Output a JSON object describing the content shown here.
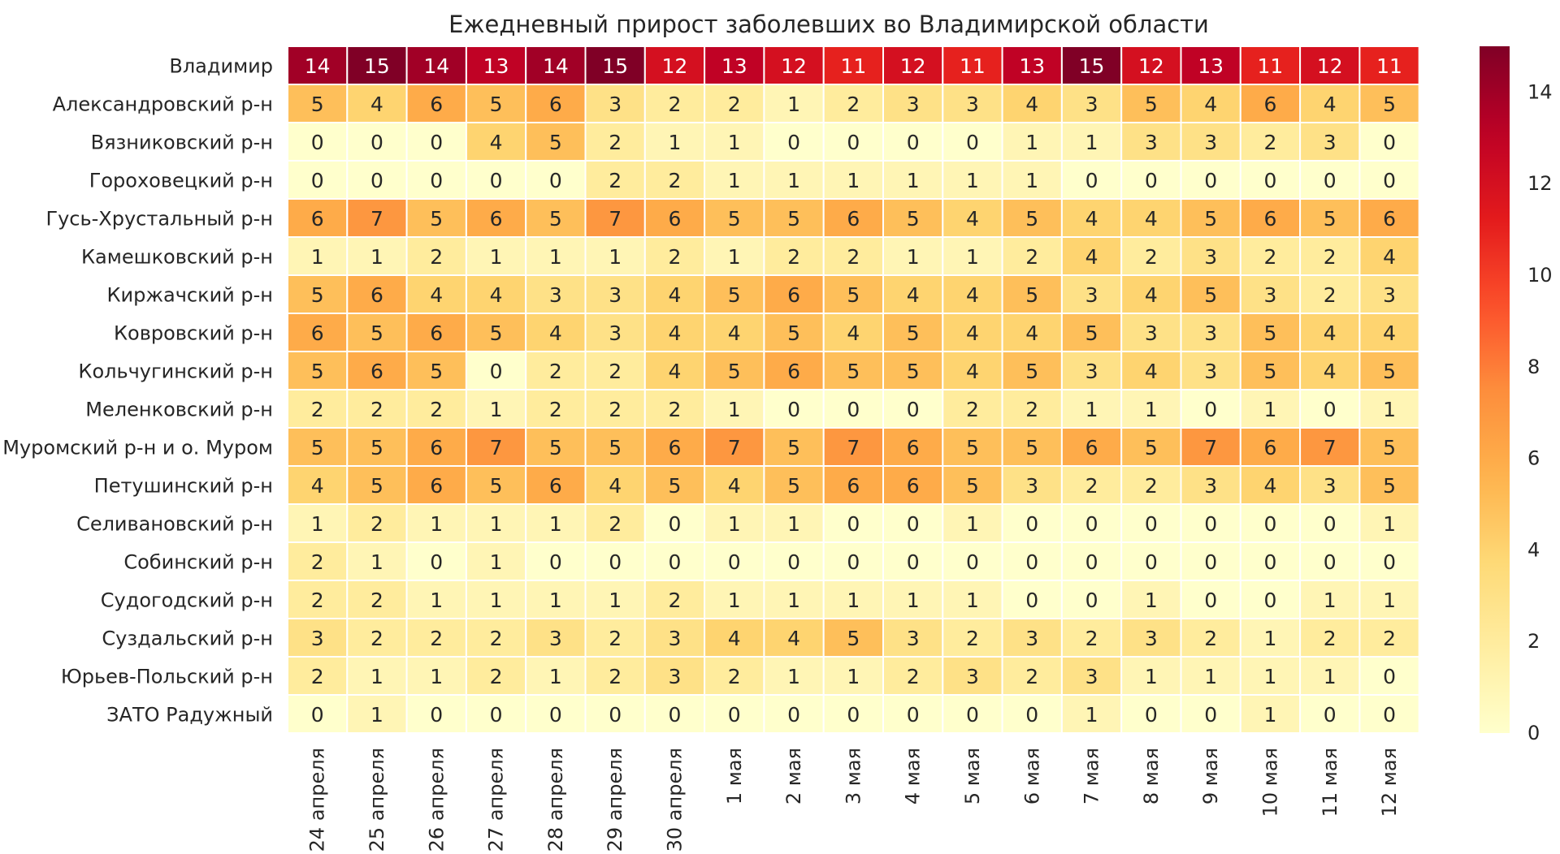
{
  "chart_data": {
    "type": "heatmap",
    "title": "Ежедневный прирост заболевших во Владимирской области",
    "rows": [
      "Владимир",
      "Александровский р-н",
      "Вязниковский р-н",
      "Гороховецкий р-н",
      "Гусь-Хрустальный р-н",
      "Камешковский р-н",
      "Киржачский р-н",
      "Ковровский р-н",
      "Кольчугинский р-н",
      "Меленковский р-н",
      "Муромский р-н и о. Муром",
      "Петушинский р-н",
      "Селивановский р-н",
      "Собинский р-н",
      "Судогодский р-н",
      "Суздальский р-н",
      "Юрьев-Польский р-н",
      "ЗАТО Радужный"
    ],
    "columns": [
      "24 апреля",
      "25 апреля",
      "26 апреля",
      "27 апреля",
      "28 апреля",
      "29 апреля",
      "30 апреля",
      "1 мая",
      "2 мая",
      "3 мая",
      "4 мая",
      "5 мая",
      "6 мая",
      "7 мая",
      "8 мая",
      "9 мая",
      "10 мая",
      "11 мая",
      "12 мая"
    ],
    "values": [
      [
        14,
        15,
        14,
        13,
        14,
        15,
        12,
        13,
        12,
        11,
        12,
        11,
        13,
        15,
        12,
        13,
        11,
        12,
        11
      ],
      [
        5,
        4,
        6,
        5,
        6,
        3,
        2,
        2,
        1,
        2,
        3,
        3,
        4,
        3,
        5,
        4,
        6,
        4,
        5
      ],
      [
        0,
        0,
        0,
        4,
        5,
        2,
        1,
        1,
        0,
        0,
        0,
        0,
        1,
        1,
        3,
        3,
        2,
        3,
        0
      ],
      [
        0,
        0,
        0,
        0,
        0,
        2,
        2,
        1,
        1,
        1,
        1,
        1,
        1,
        0,
        0,
        0,
        0,
        0,
        0
      ],
      [
        6,
        7,
        5,
        6,
        5,
        7,
        6,
        5,
        5,
        6,
        5,
        4,
        5,
        4,
        4,
        5,
        6,
        5,
        6
      ],
      [
        1,
        1,
        2,
        1,
        1,
        1,
        2,
        1,
        2,
        2,
        1,
        1,
        2,
        4,
        2,
        3,
        2,
        2,
        4
      ],
      [
        5,
        6,
        4,
        4,
        3,
        3,
        4,
        5,
        6,
        5,
        4,
        4,
        5,
        3,
        4,
        5,
        3,
        2,
        3
      ],
      [
        6,
        5,
        6,
        5,
        4,
        3,
        4,
        4,
        5,
        4,
        5,
        4,
        4,
        5,
        3,
        3,
        5,
        4,
        4
      ],
      [
        5,
        6,
        5,
        0,
        2,
        2,
        4,
        5,
        6,
        5,
        5,
        4,
        5,
        3,
        4,
        3,
        5,
        4,
        5
      ],
      [
        2,
        2,
        2,
        1,
        2,
        2,
        2,
        1,
        0,
        0,
        0,
        2,
        2,
        1,
        1,
        0,
        1,
        0,
        1
      ],
      [
        5,
        5,
        6,
        7,
        5,
        5,
        6,
        7,
        5,
        7,
        6,
        5,
        5,
        6,
        5,
        7,
        6,
        7,
        5
      ],
      [
        4,
        5,
        6,
        5,
        6,
        4,
        5,
        4,
        5,
        6,
        6,
        5,
        3,
        2,
        2,
        3,
        4,
        3,
        5
      ],
      [
        1,
        2,
        1,
        1,
        1,
        2,
        0,
        1,
        1,
        0,
        0,
        1,
        0,
        0,
        0,
        0,
        0,
        0,
        1
      ],
      [
        2,
        1,
        0,
        1,
        0,
        0,
        0,
        0,
        0,
        0,
        0,
        0,
        0,
        0,
        0,
        0,
        0,
        0,
        0
      ],
      [
        2,
        2,
        1,
        1,
        1,
        1,
        2,
        1,
        1,
        1,
        1,
        1,
        0,
        0,
        1,
        0,
        0,
        1,
        1
      ],
      [
        3,
        2,
        2,
        2,
        3,
        2,
        3,
        4,
        4,
        5,
        3,
        2,
        3,
        2,
        3,
        2,
        1,
        2,
        2
      ],
      [
        2,
        1,
        1,
        2,
        1,
        2,
        3,
        2,
        1,
        1,
        2,
        3,
        2,
        3,
        1,
        1,
        1,
        1,
        0
      ],
      [
        0,
        1,
        0,
        0,
        0,
        0,
        0,
        0,
        0,
        0,
        0,
        0,
        0,
        1,
        0,
        0,
        1,
        0,
        0
      ]
    ],
    "vmin": 0,
    "vmax": 15,
    "colormap": "YlOrRd",
    "colorbar_ticks": [
      0,
      2,
      4,
      6,
      8,
      10,
      12,
      14
    ],
    "cell_text_dark": "#262626",
    "cell_text_light": "#ffffff",
    "grid_line_color": "#ffffff"
  }
}
